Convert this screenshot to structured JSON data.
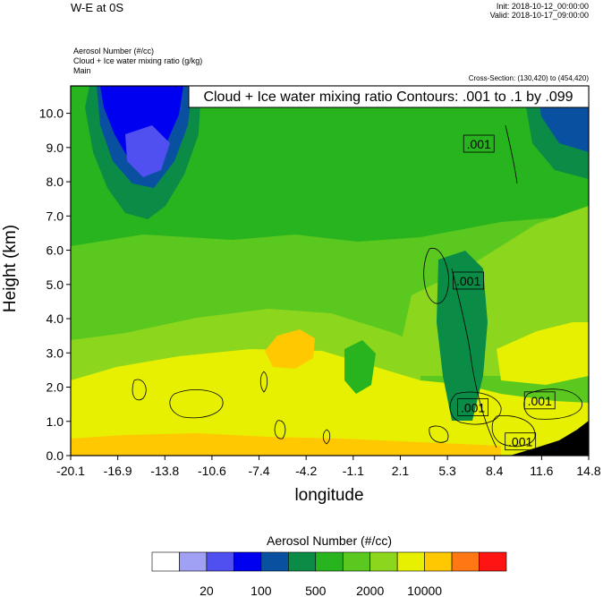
{
  "header": {
    "title": "W-E at 0S",
    "init": "Init: 2018-10-12_00:00:00",
    "valid": "Valid: 2018-10-17_09:00:00",
    "fields": [
      "Aerosol Number   (#/cc)",
      "Cloud + Ice water mixing ratio   (g/kg)",
      "Main"
    ],
    "cross_section": "Cross-Section: (130,420) to (454,420)"
  },
  "chart_data": {
    "type": "heatmap",
    "title": "",
    "xlabel": "longitude",
    "ylabel": "Height (km)",
    "xlim": [
      -20.1,
      14.8
    ],
    "ylim": [
      0.0,
      10.8
    ],
    "x_ticks": [
      "-20.1",
      "-16.9",
      "-13.8",
      "-10.6",
      "-7.4",
      "-4.2",
      "-1.1",
      "2.1",
      "5.3",
      "8.4",
      "11.6",
      "14.8"
    ],
    "y_ticks": [
      "0.0",
      "1.0",
      "2.0",
      "3.0",
      "4.0",
      "5.0",
      "6.0",
      "7.0",
      "8.0",
      "9.0",
      "10.0"
    ],
    "contour_info": "Cloud + Ice water mixing ratio Contours: .001 to .1 by .099",
    "contour_labels": [
      {
        "text": ".001",
        "x": 7.4,
        "y": 9.1
      },
      {
        "text": ".001",
        "x": 6.7,
        "y": 5.1
      },
      {
        "text": ".001",
        "x": 7.0,
        "y": 1.4
      },
      {
        "text": ".001",
        "x": 11.5,
        "y": 1.6
      },
      {
        "text": ".001",
        "x": 10.2,
        "y": 0.4
      }
    ],
    "colorbar": {
      "title": "Aerosol Number  (#/cc)",
      "colors": [
        "#ffffff",
        "#a0a0f5",
        "#5050f0",
        "#0000f0",
        "#0a50a0",
        "#0a8c46",
        "#28b41e",
        "#5ac81e",
        "#8cd71e",
        "#e6f000",
        "#ffc800",
        "#ff7814",
        "#ff1414"
      ],
      "tick_labels": [
        "20",
        "100",
        "500",
        "2000",
        "10000"
      ]
    }
  }
}
